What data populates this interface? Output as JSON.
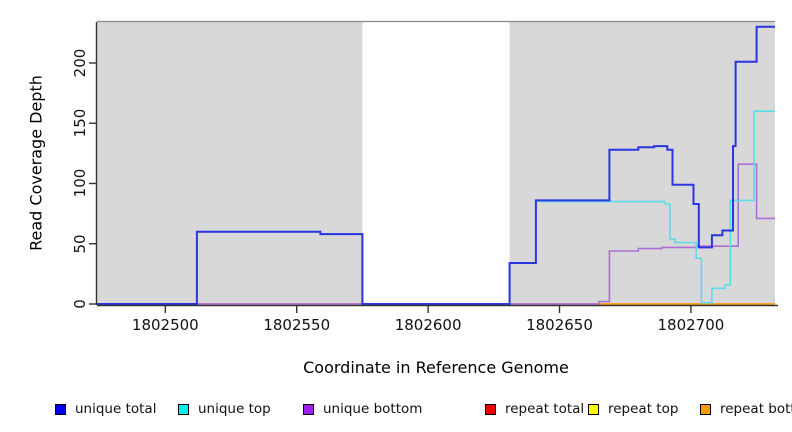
{
  "chart_data": {
    "type": "line",
    "title": "",
    "xlabel": "Coordinate in Reference Genome",
    "ylabel": "Read Coverage Depth",
    "xlim": [
      1802474,
      1802732
    ],
    "ylim": [
      0,
      234
    ],
    "x_ticks": [
      "1802500",
      "1802550",
      "1802600",
      "1802650",
      "1802700"
    ],
    "x_tick_values": [
      1802500,
      1802550,
      1802600,
      1802650,
      1802700
    ],
    "y_ticks": [
      "0",
      "50",
      "100",
      "150",
      "200"
    ],
    "y_tick_values": [
      0,
      50,
      100,
      150,
      200
    ],
    "grid": "off",
    "legend_position": "bottom",
    "plot_background": "#ffffff",
    "shaded_region_color": "#d8d8d8",
    "shaded_regions": [
      [
        1802474,
        1802575
      ],
      [
        1802631,
        1802732
      ]
    ],
    "axis_color": "#333333",
    "top_border_color": "#888888",
    "series": [
      {
        "name": "unique total",
        "line_color": "#2b35e0",
        "swatch_color": "#0000ee",
        "line_width": 2,
        "points": [
          [
            1802474,
            0
          ],
          [
            1802512,
            0
          ],
          [
            1802512,
            60
          ],
          [
            1802559,
            60
          ],
          [
            1802559,
            58
          ],
          [
            1802575,
            58
          ],
          [
            1802575,
            0
          ],
          [
            1802631,
            0
          ],
          [
            1802631,
            34
          ],
          [
            1802641,
            34
          ],
          [
            1802641,
            86
          ],
          [
            1802669,
            86
          ],
          [
            1802669,
            128
          ],
          [
            1802680,
            128
          ],
          [
            1802680,
            130
          ],
          [
            1802686,
            130
          ],
          [
            1802686,
            131
          ],
          [
            1802691,
            131
          ],
          [
            1802691,
            128
          ],
          [
            1802693,
            128
          ],
          [
            1802693,
            99
          ],
          [
            1802701,
            99
          ],
          [
            1802701,
            83
          ],
          [
            1802703,
            83
          ],
          [
            1802703,
            47
          ],
          [
            1802708,
            47
          ],
          [
            1802708,
            57
          ],
          [
            1802712,
            57
          ],
          [
            1802712,
            61
          ],
          [
            1802716,
            61
          ],
          [
            1802716,
            131
          ],
          [
            1802717,
            131
          ],
          [
            1802717,
            201
          ],
          [
            1802725,
            201
          ],
          [
            1802725,
            230
          ],
          [
            1802732,
            230
          ]
        ]
      },
      {
        "name": "unique top",
        "line_color": "#5cdce8",
        "swatch_color": "#00eeee",
        "line_width": 1.6,
        "points": [
          [
            1802474,
            0
          ],
          [
            1802512,
            0
          ],
          [
            1802512,
            60
          ],
          [
            1802559,
            60
          ],
          [
            1802559,
            58
          ],
          [
            1802575,
            58
          ],
          [
            1802575,
            0
          ],
          [
            1802631,
            0
          ],
          [
            1802631,
            34
          ],
          [
            1802641,
            34
          ],
          [
            1802641,
            85
          ],
          [
            1802690,
            85
          ],
          [
            1802690,
            83
          ],
          [
            1802692,
            83
          ],
          [
            1802692,
            54
          ],
          [
            1802694,
            54
          ],
          [
            1802694,
            51
          ],
          [
            1802702,
            51
          ],
          [
            1802702,
            38
          ],
          [
            1802704,
            38
          ],
          [
            1802704,
            1
          ],
          [
            1802708,
            1
          ],
          [
            1802708,
            13
          ],
          [
            1802713,
            13
          ],
          [
            1802713,
            16
          ],
          [
            1802715,
            16
          ],
          [
            1802715,
            86
          ],
          [
            1802724,
            86
          ],
          [
            1802724,
            160
          ],
          [
            1802732,
            160
          ]
        ]
      },
      {
        "name": "unique bottom",
        "line_color": "#ac6fd6",
        "swatch_color": "#a020f0",
        "line_width": 1.6,
        "points": [
          [
            1802474,
            0
          ],
          [
            1802665,
            0
          ],
          [
            1802665,
            2
          ],
          [
            1802669,
            2
          ],
          [
            1802669,
            44
          ],
          [
            1802680,
            44
          ],
          [
            1802680,
            46
          ],
          [
            1802689,
            46
          ],
          [
            1802689,
            47
          ],
          [
            1802702,
            47
          ],
          [
            1802702,
            48
          ],
          [
            1802718,
            48
          ],
          [
            1802718,
            116
          ],
          [
            1802725,
            116
          ],
          [
            1802725,
            71
          ],
          [
            1802732,
            71
          ]
        ]
      },
      {
        "name": "repeat total",
        "line_color": "#dc4862",
        "swatch_color": "#ee0000",
        "line_width": 1.6,
        "points": [
          [
            1802474,
            0
          ],
          [
            1802732,
            0
          ]
        ]
      },
      {
        "name": "repeat top",
        "line_color": "#ffee00",
        "swatch_color": "#ffff00",
        "line_width": 1.6,
        "points": [
          [
            1802665,
            0
          ],
          [
            1802732,
            0
          ]
        ]
      },
      {
        "name": "repeat bottom",
        "line_color": "#ff9e1b",
        "swatch_color": "#ff9900",
        "line_width": 1.8,
        "points": [
          [
            1802665,
            0
          ],
          [
            1802732,
            0
          ]
        ]
      }
    ]
  }
}
